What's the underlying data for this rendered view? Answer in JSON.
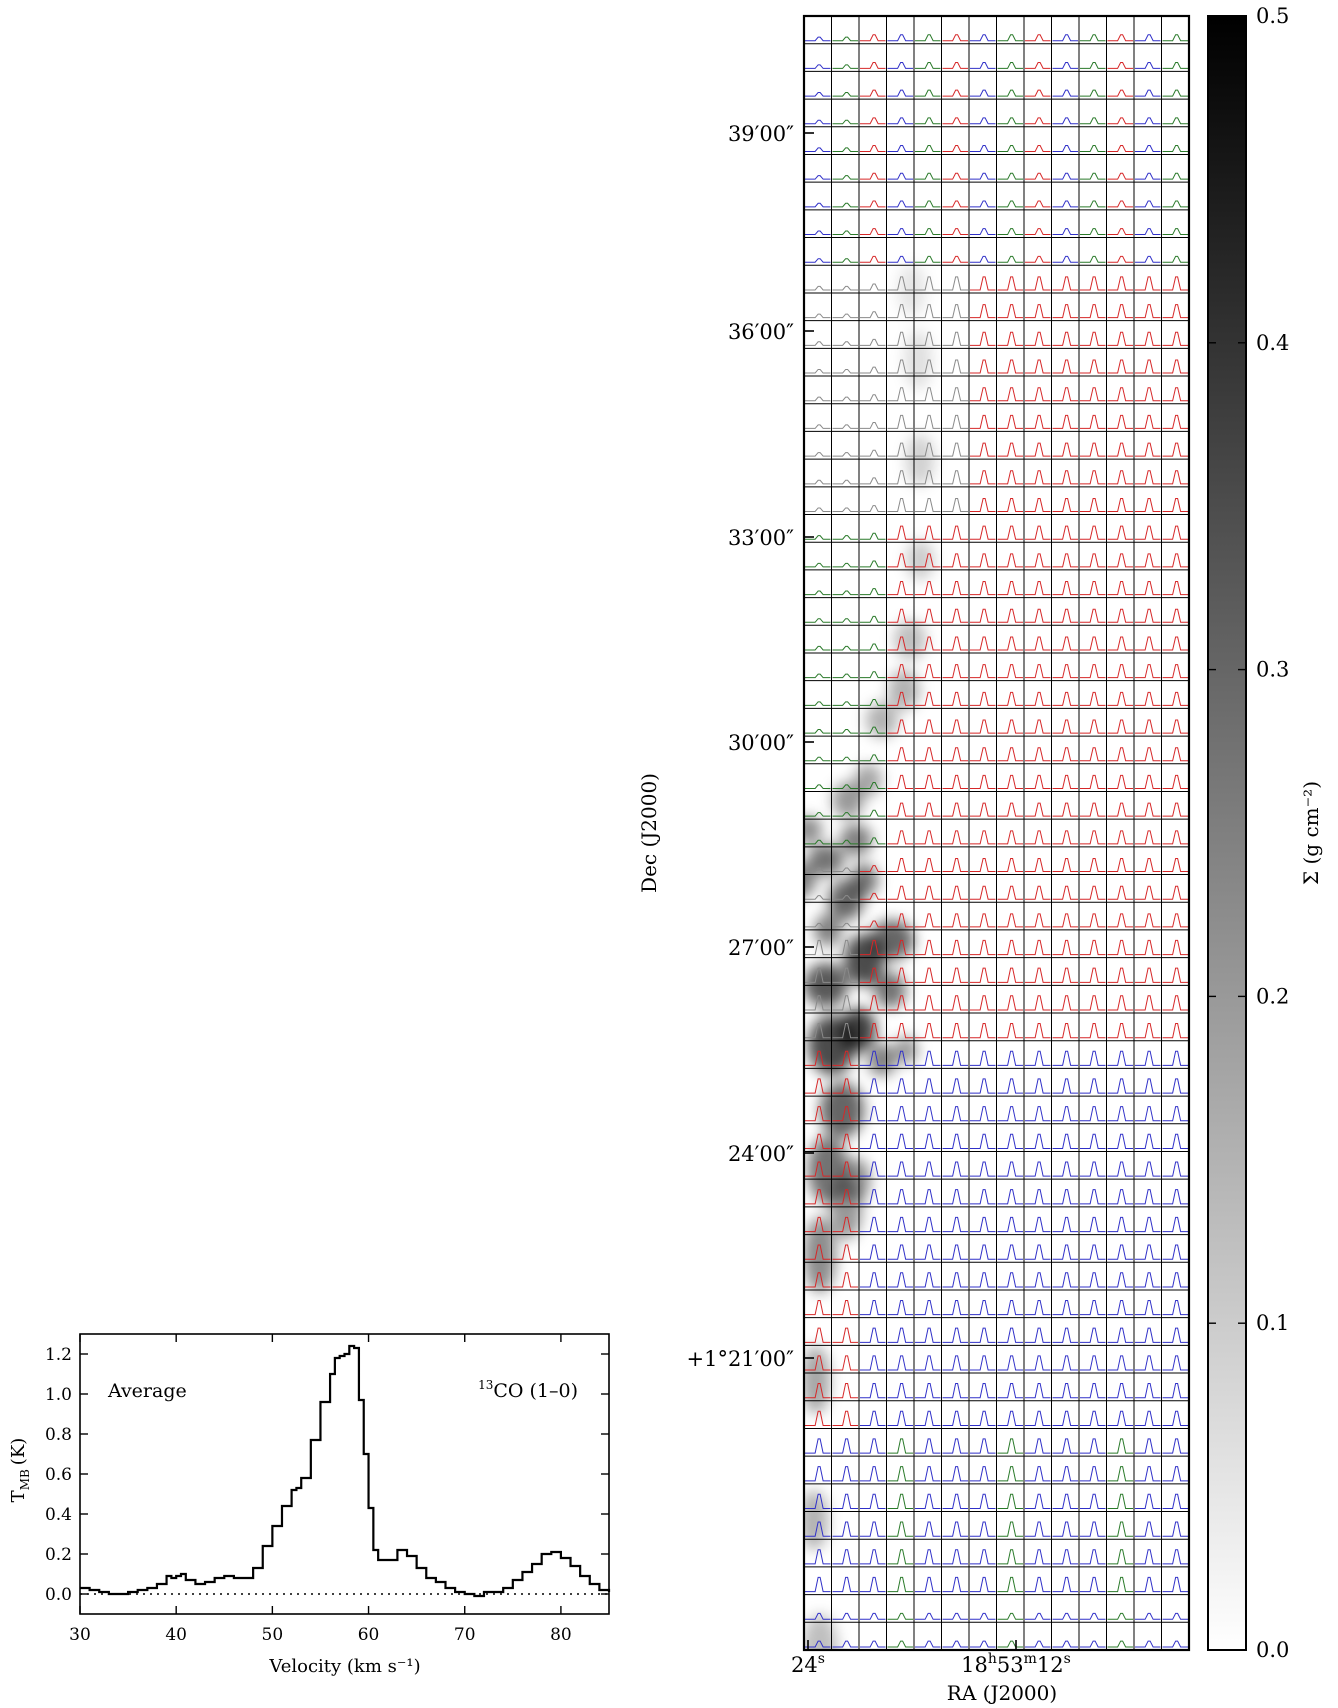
{
  "chart_data": [
    {
      "type": "line",
      "panel": "average-spectrum",
      "annotation_left": "Average",
      "annotation_right_sup": "13",
      "annotation_right_text": "CO (1–0)",
      "xlabel": "Velocity (km s⁻¹)",
      "ylabel_main": "T",
      "ylabel_sub": "MB",
      "ylabel_unit": "(K)",
      "xlim": [
        30,
        85
      ],
      "ylim": [
        -0.1,
        1.3
      ],
      "xticks": [
        30,
        40,
        50,
        60,
        70,
        80
      ],
      "yticks": [
        0.0,
        0.2,
        0.4,
        0.6,
        0.8,
        1.0,
        1.2
      ],
      "xtick_labels": [
        "30",
        "40",
        "50",
        "60",
        "70",
        "80"
      ],
      "ytick_labels": [
        "0.0",
        "0.2",
        "0.4",
        "0.6",
        "0.8",
        "1.0",
        "1.2"
      ],
      "baseline": 0.0,
      "baseline_style": "dotted",
      "line_color": "#000000",
      "series": [
        {
          "x": [
            30,
            31,
            32,
            33,
            34,
            35,
            36,
            37,
            38,
            39,
            39.5,
            40,
            40.5,
            41,
            42,
            43,
            44,
            45,
            46,
            47,
            48,
            49,
            50,
            51,
            52,
            52.5,
            53,
            54,
            55,
            56,
            56.5,
            57,
            57.5,
            58,
            58.5,
            59,
            59.5,
            60,
            60.5,
            61,
            62,
            63,
            64,
            65,
            66,
            67,
            68,
            69,
            70,
            71,
            72,
            73,
            74,
            75,
            76,
            77,
            78,
            79,
            80,
            81,
            82,
            83,
            84,
            85
          ],
          "y": [
            0.03,
            0.02,
            0.01,
            0.0,
            0.0,
            0.01,
            0.02,
            0.03,
            0.05,
            0.09,
            0.08,
            0.09,
            0.1,
            0.07,
            0.05,
            0.06,
            0.08,
            0.09,
            0.08,
            0.08,
            0.13,
            0.24,
            0.34,
            0.44,
            0.52,
            0.53,
            0.58,
            0.77,
            0.96,
            1.1,
            1.18,
            1.19,
            1.2,
            1.24,
            1.23,
            0.97,
            0.7,
            0.43,
            0.22,
            0.17,
            0.17,
            0.22,
            0.19,
            0.13,
            0.08,
            0.06,
            0.03,
            0.01,
            0.0,
            -0.01,
            0.01,
            0.01,
            0.03,
            0.07,
            0.11,
            0.15,
            0.2,
            0.21,
            0.18,
            0.14,
            0.09,
            0.05,
            0.02,
            0.01
          ]
        }
      ]
    },
    {
      "type": "heatmap",
      "panel": "spectra-grid-map",
      "xlabel": "RA (J2000)",
      "ylabel": "Dec (J2000)",
      "x_tick_labels": [
        {
          "text": "24",
          "sup": "s"
        },
        {
          "text": "18",
          "sup": "h",
          "text2": "53",
          "sup2": "m",
          "text3": "12",
          "sup3": "s"
        }
      ],
      "y_tick_labels": [
        "39′00″",
        "36′00″",
        "33′00″",
        "30′00″",
        "27′00″",
        "24′00″",
        "+1°21′00″"
      ],
      "grid_columns": 14,
      "grid_rows": 59,
      "colorbar": {
        "label": "Σ (g cm⁻²)",
        "range": [
          0.0,
          0.5
        ],
        "ticks": [
          0.0,
          0.1,
          0.2,
          0.3,
          0.4,
          0.5
        ],
        "tick_labels": [
          "0.0",
          "0.1",
          "0.2",
          "0.3",
          "0.4",
          "0.5"
        ],
        "colormap": "gray_r"
      },
      "spectrum_colors": {
        "red": "#d62728",
        "blue": "#3030c8",
        "green": "#2a7a2a",
        "gray": "#8a8a8a",
        "orange": "#e08a2a",
        "cyan": "#2a8ab8",
        "purple": "#7a3a9a"
      }
    }
  ]
}
